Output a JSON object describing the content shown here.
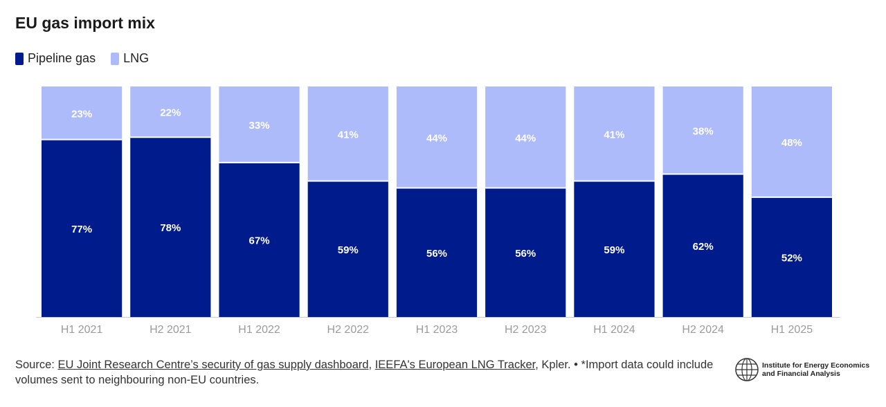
{
  "chart_data": {
    "type": "bar",
    "stacked": true,
    "title": "EU gas import mix",
    "categories": [
      "H1 2021",
      "H2 2021",
      "H1 2022",
      "H2 2022",
      "H1 2023",
      "H2 2023",
      "H1 2024",
      "H2 2024",
      "H1 2025"
    ],
    "series": [
      {
        "name": "Pipeline gas",
        "color": "#001c8c",
        "values": [
          77,
          78,
          67,
          59,
          56,
          56,
          59,
          62,
          52
        ],
        "labels": [
          "77%",
          "78%",
          "67%",
          "59%",
          "56%",
          "56%",
          "59%",
          "62%",
          "52%"
        ]
      },
      {
        "name": "LNG",
        "color": "#aebbfa",
        "values": [
          23,
          22,
          33,
          41,
          44,
          44,
          41,
          38,
          48
        ],
        "labels": [
          "23%",
          "22%",
          "33%",
          "41%",
          "44%",
          "44%",
          "41%",
          "38%",
          "48%"
        ]
      }
    ],
    "ylim": [
      0,
      100
    ],
    "xlabel": "",
    "ylabel": ""
  },
  "legend": {
    "pipeline_label": "Pipeline gas",
    "lng_label": "LNG"
  },
  "source": {
    "prefix": "Source: ",
    "link1": "EU Joint Research Centre’s security of gas supply dashboard",
    "sep": ", ",
    "link2": "IEEFA's European LNG Tracker",
    "suffix": ", Kpler. • *Import data could include volumes sent to neighbouring non-EU countries."
  },
  "logo": {
    "line1": "Institute for Energy Economics",
    "line2": "and Financial Analysis"
  }
}
